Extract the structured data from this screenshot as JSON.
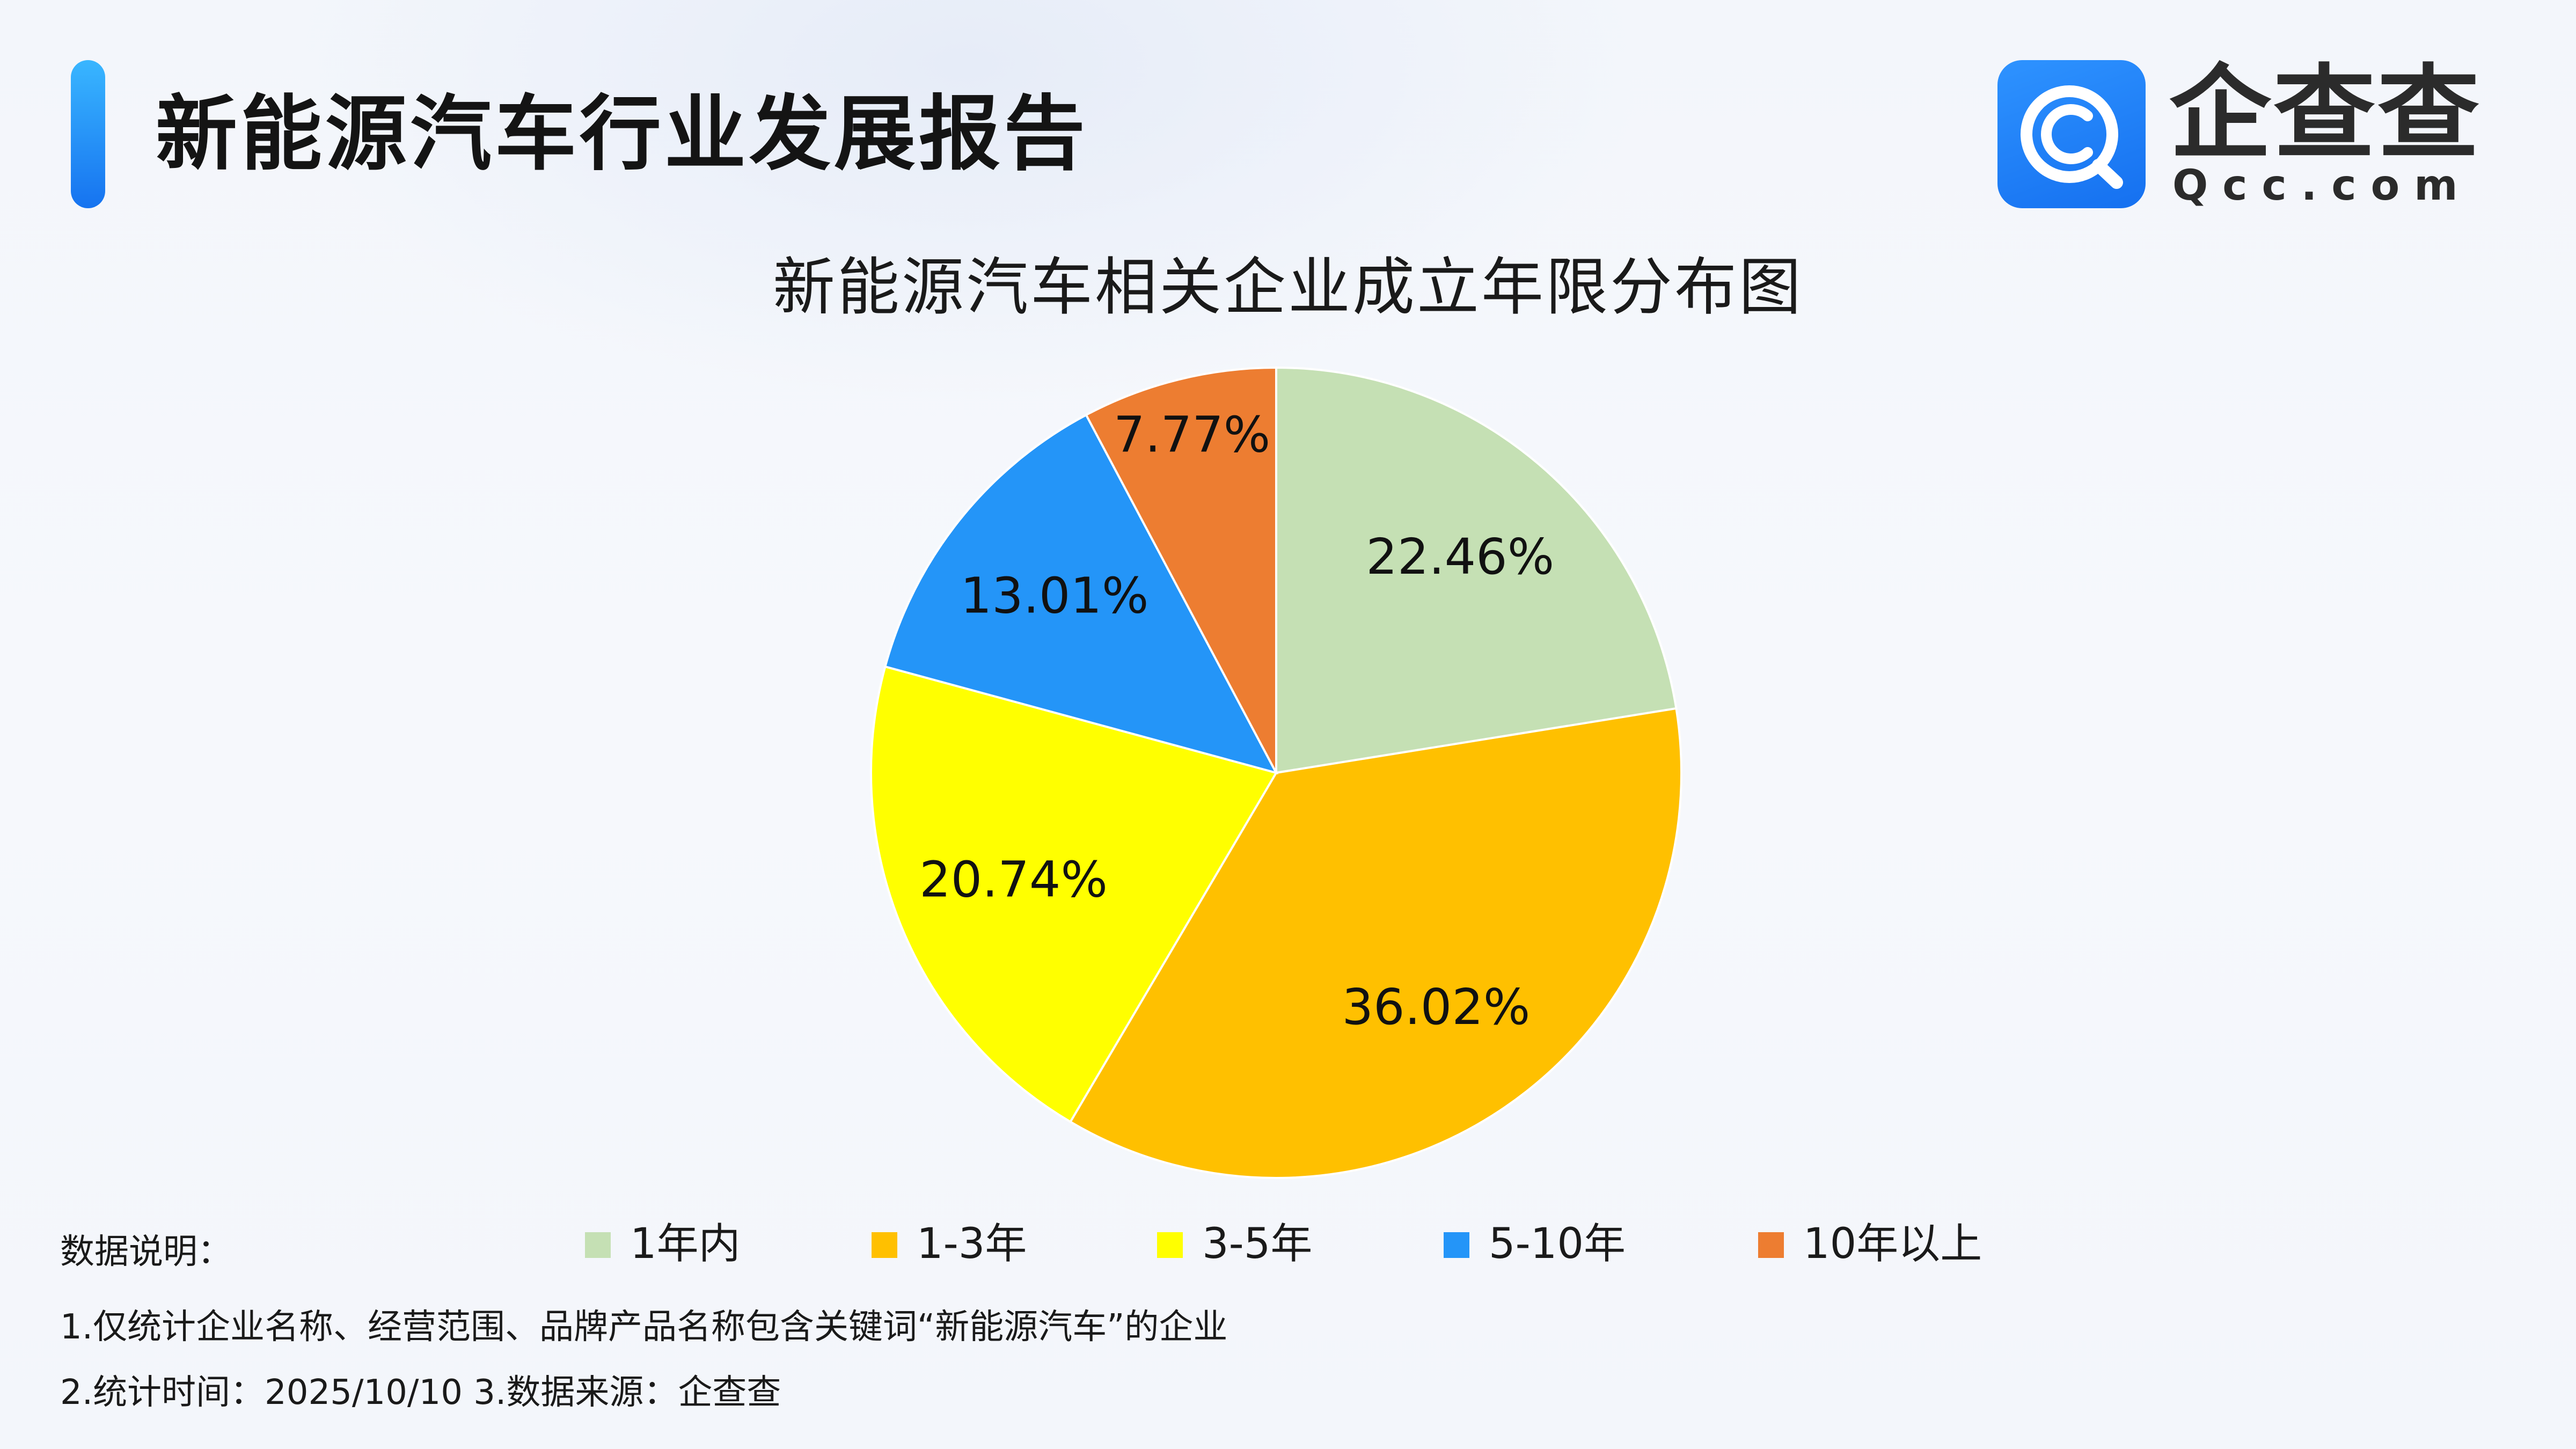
{
  "header": {
    "title": "新能源汽车行业发展报告"
  },
  "logo": {
    "name": "企查查",
    "domain": "Qcc.com",
    "icon": "qcc-logo-icon"
  },
  "chart_data": {
    "type": "pie",
    "title": "新能源汽车相关企业成立年限分布图",
    "categories": [
      "1年内",
      "1-3年",
      "3-5年",
      "5-10年",
      "10年以上"
    ],
    "values": [
      22.46,
      36.02,
      20.74,
      13.01,
      7.77
    ],
    "labels": [
      "22.46%",
      "36.02%",
      "20.74%",
      "13.01%",
      "7.77%"
    ],
    "colors": [
      "#c5e0b4",
      "#ffc000",
      "#ffff00",
      "#2495f8",
      "#ed7d31"
    ],
    "start": "12 o'clock, clockwise",
    "legend_position": "bottom"
  },
  "notes": {
    "heading": "数据说明：",
    "line1": "1.仅统计企业名称、经营范围、品牌产品名称包含关键词“新能源汽车”的企业",
    "line2": "2.统计时间：2025/10/10    3.数据来源：企查查"
  }
}
